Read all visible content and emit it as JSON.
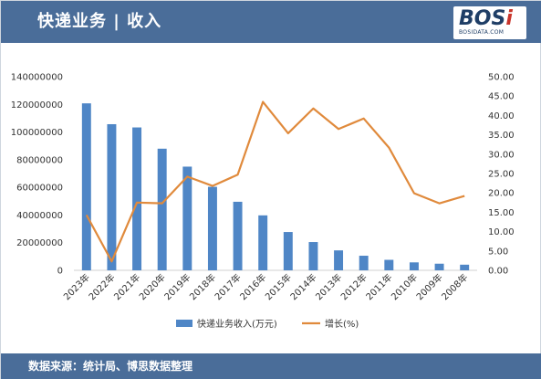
{
  "header": {
    "title": "快递业务 | 收入",
    "logo_text": "BOSi",
    "logo_subtext": "BOSIDATA.COM"
  },
  "footer": {
    "source": "数据来源：统计局、博思数据整理"
  },
  "colors": {
    "header_bg": "#4a6d99",
    "bar": "#4f86c6",
    "line": "#e08a3c"
  },
  "chart_data": {
    "type": "bar",
    "title": "",
    "categories": [
      "2023年",
      "2022年",
      "2021年",
      "2020年",
      "2019年",
      "2018年",
      "2017年",
      "2016年",
      "2015年",
      "2014年",
      "2013年",
      "2012年",
      "2011年",
      "2010年",
      "2009年",
      "2008年"
    ],
    "series": [
      {
        "name": "快递业务收入(万元)",
        "type": "bar",
        "axis": "left",
        "values": [
          120740000,
          105670000,
          103320000,
          87950000,
          74980000,
          60380000,
          49570000,
          39740000,
          27700000,
          20450000,
          14420000,
          10550000,
          7580000,
          5750000,
          4790000,
          4080000
        ]
      },
      {
        "name": "增长(%)",
        "type": "line",
        "axis": "right",
        "values": [
          14.3,
          2.3,
          17.5,
          17.3,
          24.2,
          21.8,
          24.7,
          43.5,
          35.4,
          41.8,
          36.5,
          39.2,
          31.7,
          19.9,
          17.3,
          19.2
        ]
      }
    ],
    "y_left": {
      "ylim": [
        0,
        140000000
      ],
      "ticks": [
        "0",
        "20000000",
        "40000000",
        "60000000",
        "80000000",
        "100000000",
        "120000000",
        "140000000"
      ]
    },
    "y_right": {
      "ylim": [
        0,
        50
      ],
      "ticks": [
        "0.00",
        "5.00",
        "10.00",
        "15.00",
        "20.00",
        "25.00",
        "30.00",
        "35.00",
        "40.00",
        "45.00",
        "50.00"
      ]
    },
    "grid": false,
    "legend": "bottom"
  }
}
